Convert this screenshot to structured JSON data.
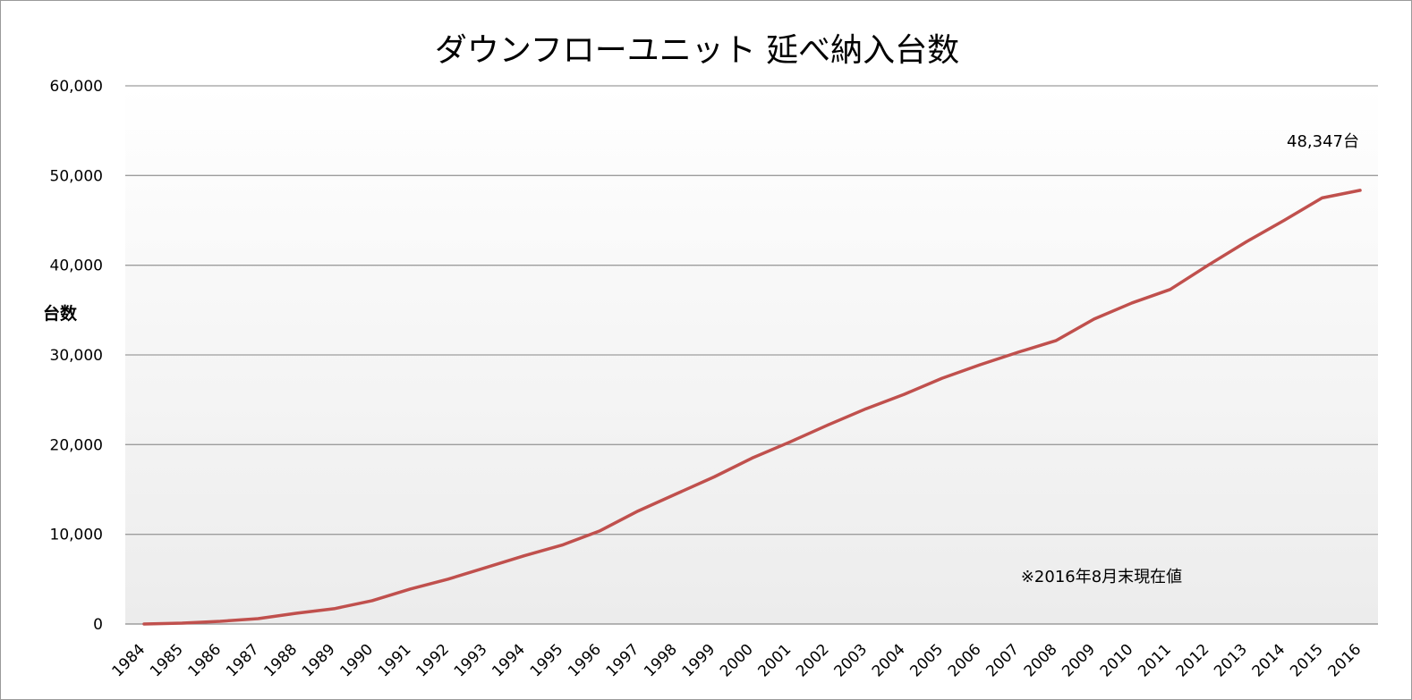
{
  "chart_data": {
    "type": "line",
    "title": "ダウンフローユニット 延べ納入台数",
    "xlabel": "",
    "ylabel": "台数",
    "ylim": [
      0,
      60000
    ],
    "yticks": [
      0,
      10000,
      20000,
      30000,
      40000,
      50000,
      60000
    ],
    "ytick_labels": [
      "0",
      "10,000",
      "20,000",
      "30,000",
      "40,000",
      "50,000",
      "60,000"
    ],
    "grid": true,
    "legend": "none",
    "categories": [
      "1984",
      "1985",
      "1986",
      "1987",
      "1988",
      "1989",
      "1990",
      "1991",
      "1992",
      "1993",
      "1994",
      "1995",
      "1996",
      "1997",
      "1998",
      "1999",
      "2000",
      "2001",
      "2002",
      "2003",
      "2004",
      "2005",
      "2006",
      "2007",
      "2008",
      "2009",
      "2010",
      "2011",
      "2012",
      "2013",
      "2014",
      "2015",
      "2016"
    ],
    "series": [
      {
        "color": "#c0504d",
        "values": [
          0,
          100,
          300,
          600,
          1200,
          1700,
          2600,
          3900,
          5000,
          6300,
          7600,
          8800,
          10400,
          12600,
          14500,
          16400,
          18500,
          20300,
          22200,
          24000,
          25600,
          27400,
          28900,
          30300,
          31600,
          34000,
          35800,
          37300,
          40000,
          42600,
          45000,
          47500,
          48347
        ]
      }
    ],
    "annotations": {
      "last_value_label": "48,347台",
      "note": "※2016年8月末現在値"
    }
  }
}
